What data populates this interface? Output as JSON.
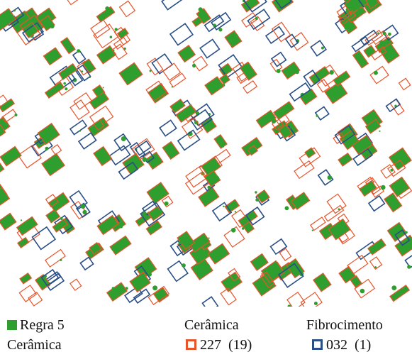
{
  "legend": {
    "rule_swatch_color": "#2e9e2e",
    "rule_label": "Regra 5",
    "rule_sublabel": "Cerâmica",
    "ceramic_title": "Cerâmica",
    "ceramic_color": "#e8542a",
    "ceramic_value": "227",
    "ceramic_count": "(19)",
    "fiber_title": "Fibrocimento",
    "fiber_color": "#2a4f86",
    "fiber_value": "032",
    "fiber_count": "(1)"
  }
}
